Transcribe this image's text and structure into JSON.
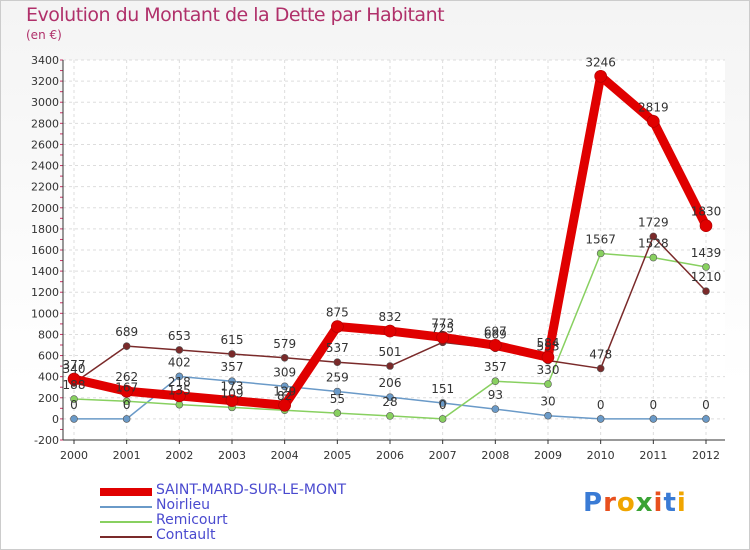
{
  "title": "Evolution du Montant de la Dette par Habitant",
  "subtitle": "(en €)",
  "logo_text": "Proxiti",
  "chart_data": {
    "type": "line",
    "x": [
      "2000",
      "2001",
      "2002",
      "2003",
      "2004",
      "2005",
      "2006",
      "2007",
      "2008",
      "2009",
      "2010",
      "2011",
      "2012"
    ],
    "ylim": [
      -200,
      3400
    ],
    "yticks": [
      -200,
      0,
      200,
      400,
      600,
      800,
      1000,
      1200,
      1400,
      1600,
      1800,
      2000,
      2200,
      2400,
      2600,
      2800,
      3000,
      3200,
      3400
    ],
    "grid": true,
    "legend_position": "bottom-left",
    "series": [
      {
        "name": "SAINT-MARD-SUR-LE-MONT",
        "color": "#e00000",
        "thick": true,
        "values": [
          377,
          262,
          218,
          173,
          129,
          875,
          832,
          773,
          697,
          584,
          3246,
          2819,
          1830
        ]
      },
      {
        "name": "Noirlieu",
        "color": "#6a9ac8",
        "thick": false,
        "values": [
          0,
          0,
          402,
          357,
          309,
          259,
          206,
          151,
          93,
          30,
          0,
          0,
          0
        ]
      },
      {
        "name": "Remicourt",
        "color": "#88d060",
        "thick": false,
        "values": [
          188,
          167,
          135,
          109,
          82,
          55,
          28,
          0,
          357,
          330,
          1567,
          1528,
          1439
        ]
      },
      {
        "name": "Contault",
        "color": "#7a2a2a",
        "thick": false,
        "values": [
          340,
          689,
          653,
          615,
          579,
          537,
          501,
          725,
          669,
          553,
          478,
          1729,
          1210
        ]
      }
    ]
  }
}
